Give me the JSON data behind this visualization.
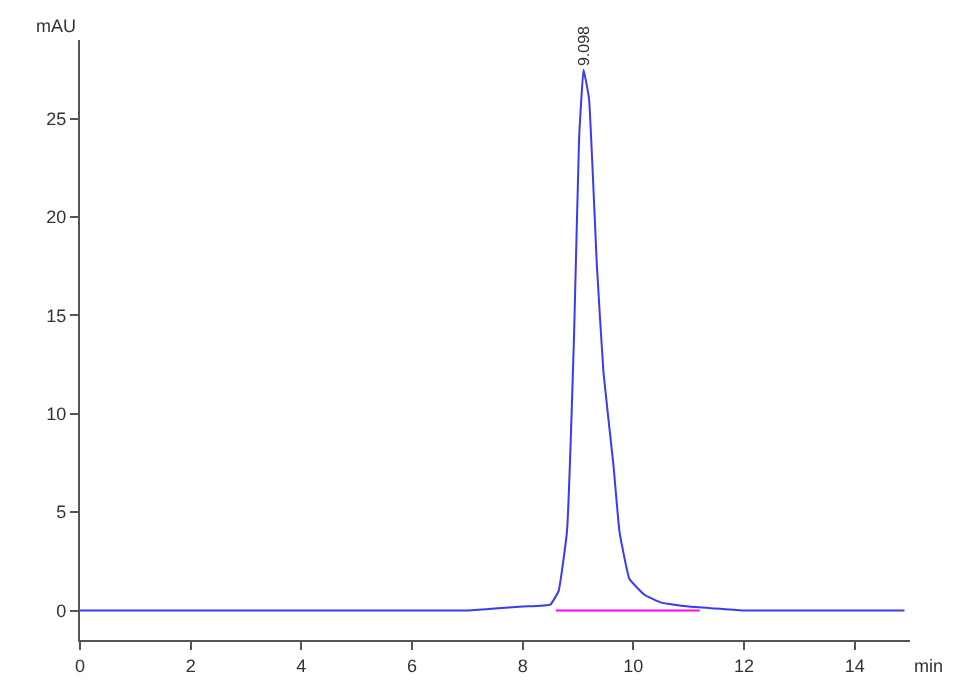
{
  "chart_data": {
    "type": "line",
    "xlabel": "min",
    "ylabel": "mAU",
    "xlim": [
      0,
      15
    ],
    "xticks": [
      0,
      2,
      4,
      6,
      8,
      10,
      12,
      14
    ],
    "ylim": [
      -1.5,
      29
    ],
    "yticks": [
      0,
      5,
      10,
      15,
      20,
      25
    ],
    "annotations": [
      {
        "text": "9.098",
        "x": 9.1,
        "y": 27.5
      }
    ],
    "series": [
      {
        "color": "#3a3af0",
        "x": [
          0,
          1,
          2,
          3,
          4,
          5,
          6,
          7,
          7.5,
          8.0,
          8.5,
          8.65,
          8.8,
          8.93,
          9.02,
          9.1,
          9.2,
          9.34,
          9.46,
          9.64,
          9.75,
          9.93,
          10.2,
          10.5,
          11.0,
          11.5,
          12,
          13,
          14,
          14.9
        ],
        "values": [
          0,
          0,
          0,
          0,
          0,
          0,
          0,
          0,
          0.1,
          0.2,
          0.3,
          1.0,
          4.0,
          14.1,
          24,
          27.5,
          26.0,
          17.6,
          12.1,
          7.4,
          4.0,
          1.6,
          0.8,
          0.4,
          0.2,
          0.1,
          0,
          0,
          0,
          0
        ]
      },
      {
        "color": "#ff00ff",
        "x": [
          8.6,
          11.2
        ],
        "values": [
          0,
          0
        ]
      }
    ]
  }
}
